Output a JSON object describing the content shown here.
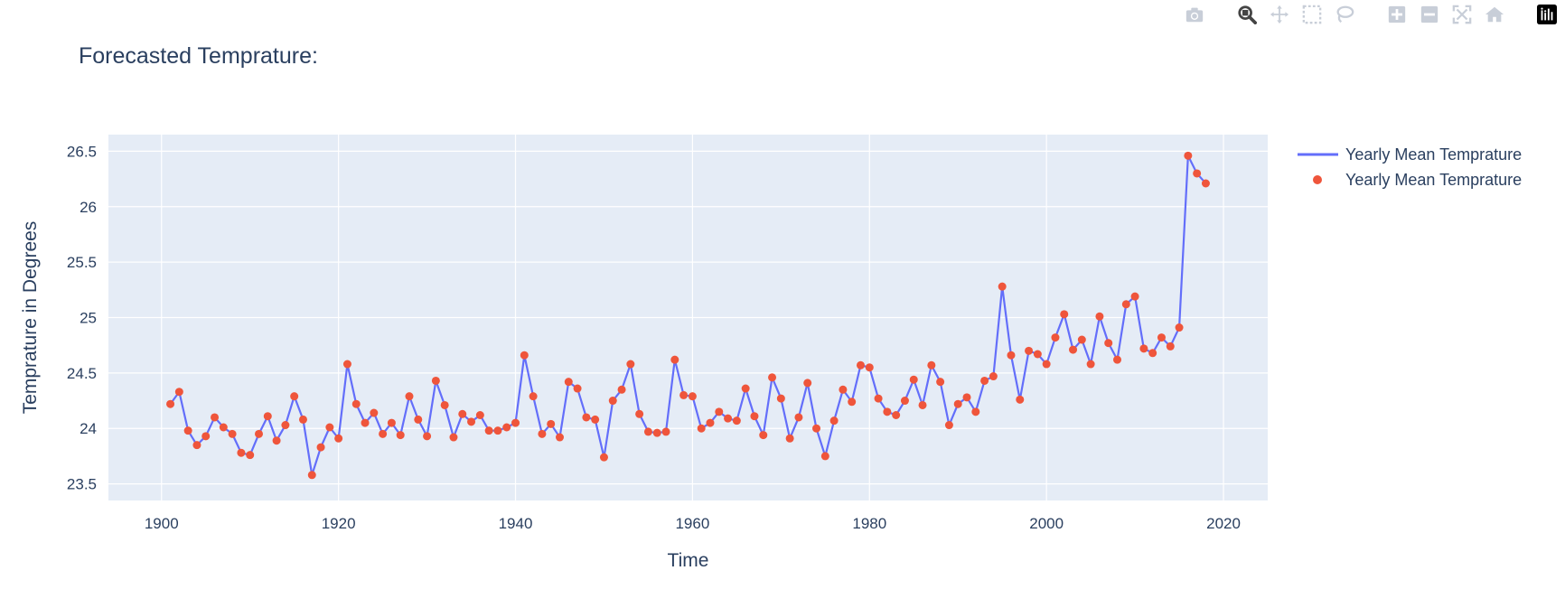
{
  "modebar": {
    "buttons": [
      {
        "name": "camera-icon",
        "title": "Download plot as a png"
      },
      {
        "name": "zoom-icon",
        "title": "Zoom"
      },
      {
        "name": "pan-icon",
        "title": "Pan"
      },
      {
        "name": "box-select-icon",
        "title": "Box Select"
      },
      {
        "name": "lasso-select-icon",
        "title": "Lasso Select"
      },
      {
        "name": "zoom-in-icon",
        "title": "Zoom in"
      },
      {
        "name": "zoom-out-icon",
        "title": "Zoom out"
      },
      {
        "name": "autoscale-icon",
        "title": "Autoscale"
      },
      {
        "name": "reset-axes-icon",
        "title": "Reset axes"
      },
      {
        "name": "plotly-logo-icon",
        "title": "Produced with Plotly"
      }
    ]
  },
  "colors": {
    "plot_bg": "#e5ecf6",
    "line": "#636efa",
    "marker": "#ef553b",
    "text": "#2a3f5f",
    "grid": "#ffffff",
    "modebar_icon": "#c8ced8",
    "modebar_active": "#444444"
  },
  "chart_data": {
    "type": "line",
    "title": "Forecasted Temprature:",
    "xlabel": "Time",
    "ylabel": "Temprature in Degrees",
    "xlim": [
      1894,
      2025
    ],
    "ylim": [
      23.35,
      26.65
    ],
    "x_ticks": [
      1900,
      1920,
      1940,
      1960,
      1980,
      2000,
      2020
    ],
    "y_ticks": [
      23.5,
      24,
      24.5,
      25,
      25.5,
      26,
      26.5
    ],
    "y_tick_labels": [
      "23.5",
      "24",
      "24.5",
      "25",
      "25.5",
      "26",
      "26.5"
    ],
    "grid": true,
    "legend_position": "right",
    "series": [
      {
        "name": "Yearly Mean Temprature",
        "mode": "lines",
        "x_start": 1901,
        "x_end": 2018,
        "values": [
          24.22,
          24.33,
          23.98,
          23.85,
          23.93,
          24.1,
          24.01,
          23.95,
          23.78,
          23.76,
          23.95,
          24.11,
          23.89,
          24.03,
          24.29,
          24.08,
          23.58,
          23.83,
          24.01,
          23.91,
          24.58,
          24.22,
          24.05,
          24.14,
          23.95,
          24.05,
          23.94,
          24.29,
          24.08,
          23.93,
          24.43,
          24.21,
          23.92,
          24.13,
          24.06,
          24.12,
          23.98,
          23.98,
          24.01,
          24.05,
          24.66,
          24.29,
          23.95,
          24.04,
          23.92,
          24.42,
          24.36,
          24.1,
          24.08,
          23.74,
          24.25,
          24.35,
          24.58,
          24.13,
          23.97,
          23.96,
          23.97,
          24.62,
          24.3,
          24.29,
          24.0,
          24.05,
          24.15,
          24.09,
          24.07,
          24.36,
          24.11,
          23.94,
          24.46,
          24.27,
          23.91,
          24.1,
          24.41,
          24.0,
          23.75,
          24.07,
          24.35,
          24.24,
          24.57,
          24.55,
          24.27,
          24.15,
          24.12,
          24.25,
          24.44,
          24.21,
          24.57,
          24.42,
          24.03,
          24.22,
          24.28,
          24.15,
          24.43,
          24.47,
          25.28,
          24.66,
          24.26,
          24.7,
          24.67,
          24.58,
          24.82,
          25.03,
          24.71,
          24.8,
          24.58,
          25.01,
          24.77,
          24.62,
          25.12,
          25.19,
          24.72,
          24.68,
          24.82,
          24.74,
          24.91,
          26.46,
          26.3,
          26.21
        ]
      },
      {
        "name": "Yearly Mean Temprature",
        "mode": "markers",
        "x_start": 1901,
        "x_end": 2018,
        "values": [
          24.22,
          24.33,
          23.98,
          23.85,
          23.93,
          24.1,
          24.01,
          23.95,
          23.78,
          23.76,
          23.95,
          24.11,
          23.89,
          24.03,
          24.29,
          24.08,
          23.58,
          23.83,
          24.01,
          23.91,
          24.58,
          24.22,
          24.05,
          24.14,
          23.95,
          24.05,
          23.94,
          24.29,
          24.08,
          23.93,
          24.43,
          24.21,
          23.92,
          24.13,
          24.06,
          24.12,
          23.98,
          23.98,
          24.01,
          24.05,
          24.66,
          24.29,
          23.95,
          24.04,
          23.92,
          24.42,
          24.36,
          24.1,
          24.08,
          23.74,
          24.25,
          24.35,
          24.58,
          24.13,
          23.97,
          23.96,
          23.97,
          24.62,
          24.3,
          24.29,
          24.0,
          24.05,
          24.15,
          24.09,
          24.07,
          24.36,
          24.11,
          23.94,
          24.46,
          24.27,
          23.91,
          24.1,
          24.41,
          24.0,
          23.75,
          24.07,
          24.35,
          24.24,
          24.57,
          24.55,
          24.27,
          24.15,
          24.12,
          24.25,
          24.44,
          24.21,
          24.57,
          24.42,
          24.03,
          24.22,
          24.28,
          24.15,
          24.43,
          24.47,
          25.28,
          24.66,
          24.26,
          24.7,
          24.67,
          24.58,
          24.82,
          25.03,
          24.71,
          24.8,
          24.58,
          25.01,
          24.77,
          24.62,
          25.12,
          25.19,
          24.72,
          24.68,
          24.82,
          24.74,
          24.91,
          26.46,
          26.3,
          26.21
        ]
      }
    ]
  }
}
